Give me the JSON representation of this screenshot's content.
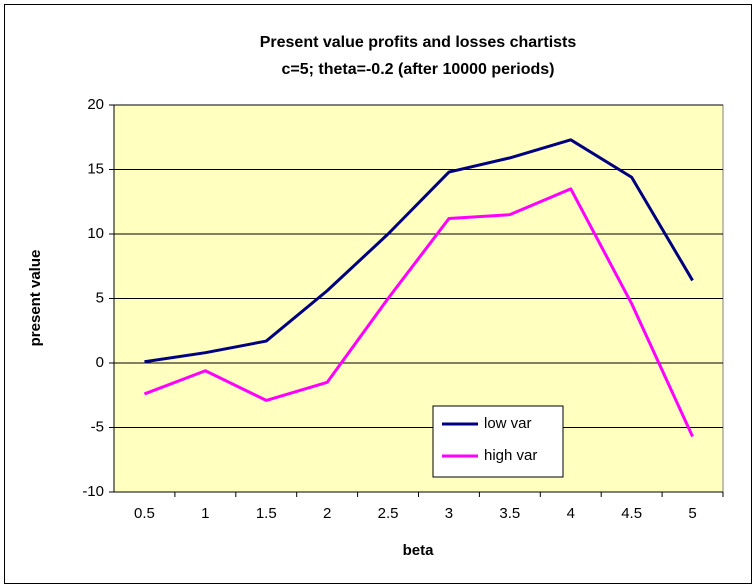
{
  "chart_data": {
    "type": "line",
    "title": [
      "Present value profits and losses chartists",
      "c=5; theta=-0.2  (after 10000 periods)"
    ],
    "x_label": "beta",
    "y_label": "present value",
    "categories": [
      "0.5",
      "1",
      "1.5",
      "2",
      "2.5",
      "3",
      "3.5",
      "4",
      "4.5",
      "5"
    ],
    "series": [
      {
        "name": "low var",
        "color": "#000080",
        "values": [
          0.1,
          0.8,
          1.7,
          5.6,
          10.0,
          14.8,
          15.9,
          17.3,
          14.4,
          6.4
        ]
      },
      {
        "name": "high var",
        "color": "#ff00ff",
        "values": [
          -2.4,
          -0.6,
          -2.9,
          -1.5,
          5.0,
          11.2,
          11.5,
          13.5,
          4.6,
          -5.7
        ]
      }
    ],
    "ylim": [
      -10,
      20
    ],
    "yticks": [
      -10,
      -5,
      0,
      5,
      10,
      15,
      20
    ],
    "grid": true
  }
}
